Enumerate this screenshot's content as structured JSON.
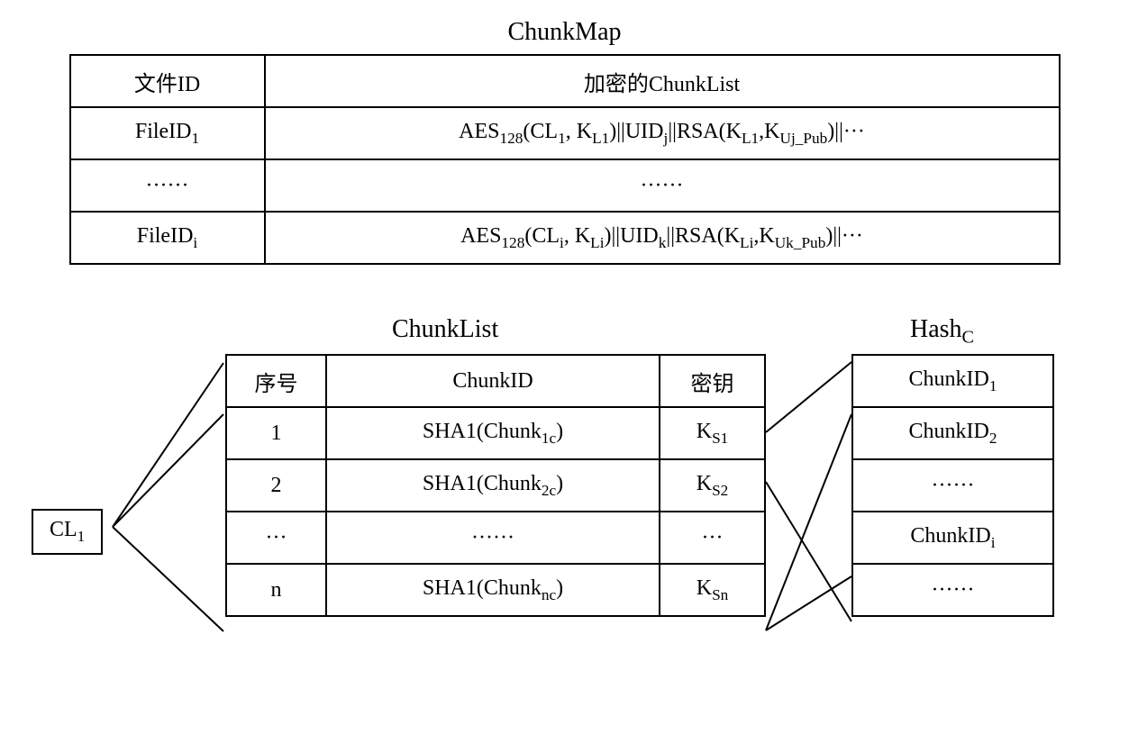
{
  "titles": {
    "chunkmap": "ChunkMap",
    "chunklist": "ChunkList",
    "hashc": "Hash",
    "hashc_sub": "C"
  },
  "chunkmap": {
    "header_col1": "文件ID",
    "header_col2": "加密的ChunkList",
    "rows": [
      {
        "col1_pre": "FileID",
        "col1_sub": "1",
        "col2": "AES<sub>128</sub>(CL<sub>1</sub>, K<sub>L1</sub>)||UID<sub>j</sub>||RSA(K<sub>L1</sub>,K<sub>Uj_Pub</sub>)||···"
      },
      {
        "col1_plain": "······",
        "col2_plain": "······"
      },
      {
        "col1_pre": "FileID",
        "col1_sub": "i",
        "col2": "AES<sub>128</sub>(CL<sub>i</sub>, K<sub>Li</sub>)||UID<sub>k</sub>||RSA(K<sub>Li</sub>,K<sub>Uk_Pub</sub>)||···"
      }
    ]
  },
  "cl_box": {
    "pre": "CL",
    "sub": "1"
  },
  "chunklist": {
    "header_col1": "序号",
    "header_col2": "ChunkID",
    "header_col3": "密钥",
    "rows": [
      {
        "c1": "1",
        "c2_pre": "SHA1(Chunk",
        "c2_sub": "1c",
        "c2_suf": ")",
        "c3_pre": "K",
        "c3_sub": "S1"
      },
      {
        "c1": "2",
        "c2_pre": "SHA1(Chunk",
        "c2_sub": "2c",
        "c2_suf": ")",
        "c3_pre": "K",
        "c3_sub": "S2"
      },
      {
        "c1": "···",
        "c2_plain": "······",
        "c3_plain": "···"
      },
      {
        "c1": "n",
        "c2_pre": "SHA1(Chunk",
        "c2_sub": "nc",
        "c2_suf": ")",
        "c3_pre": "K",
        "c3_sub": "Sn"
      }
    ]
  },
  "hashc": {
    "rows": [
      {
        "pre": "ChunkID",
        "sub": "1"
      },
      {
        "pre": "ChunkID",
        "sub": "2"
      },
      {
        "plain": "······"
      },
      {
        "pre": "ChunkID",
        "sub": "i"
      },
      {
        "plain": "······"
      }
    ]
  },
  "style": {
    "background_color": "#ffffff",
    "border_color": "#000000",
    "text_color": "#000000",
    "font_family": "Times New Roman, SimSun, serif",
    "title_fontsize": 28,
    "cell_fontsize": 24,
    "line_color": "#000000",
    "line_width": 2
  }
}
